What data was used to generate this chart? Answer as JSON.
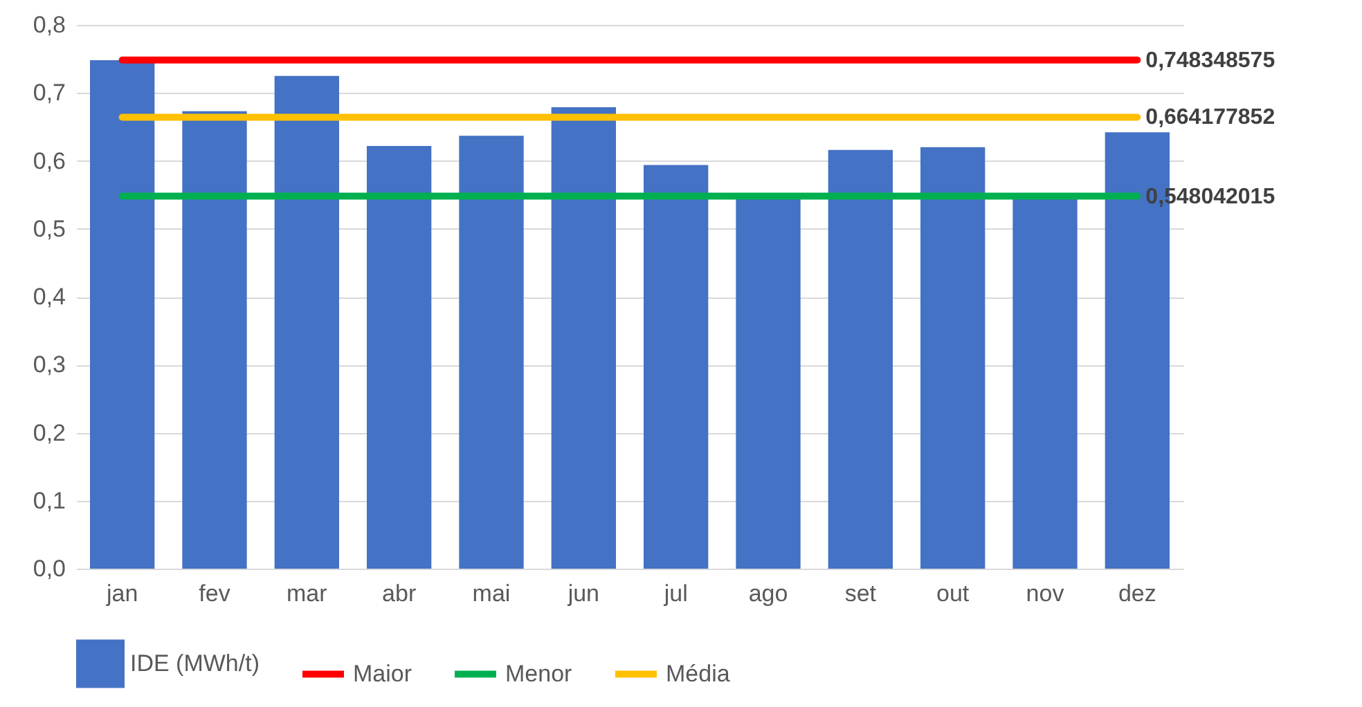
{
  "chart_data": {
    "type": "bar",
    "categories": [
      "jan",
      "fev",
      "mar",
      "abr",
      "mai",
      "jun",
      "jul",
      "ago",
      "set",
      "out",
      "nov",
      "dez"
    ],
    "series": [
      {
        "name": "IDE (MWh/t)",
        "color": "#4472c4",
        "values": [
          0.748,
          0.673,
          0.725,
          0.622,
          0.637,
          0.679,
          0.594,
          0.548,
          0.616,
          0.62,
          0.55,
          0.642
        ]
      },
      {
        "name": "Maior",
        "type": "line",
        "color": "#ff0000",
        "values": [
          0.748348575,
          0.748348575,
          0.748348575,
          0.748348575,
          0.748348575,
          0.748348575,
          0.748348575,
          0.748348575,
          0.748348575,
          0.748348575,
          0.748348575,
          0.748348575
        ],
        "value_labels": [
          null,
          null,
          null,
          null,
          null,
          null,
          null,
          null,
          null,
          null,
          null,
          "0,748348575"
        ]
      },
      {
        "name": "Menor",
        "type": "line",
        "color": "#00b050",
        "values": [
          0.548042015,
          0.548042015,
          0.548042015,
          0.548042015,
          0.548042015,
          0.548042015,
          0.548042015,
          0.548042015,
          0.548042015,
          0.548042015,
          0.548042015,
          0.548042015
        ],
        "value_labels": [
          null,
          null,
          null,
          null,
          null,
          null,
          null,
          null,
          null,
          null,
          null,
          "0,548042015"
        ]
      },
      {
        "name": "Média",
        "type": "line",
        "color": "#ffc000",
        "values": [
          0.664177852,
          0.664177852,
          0.664177852,
          0.664177852,
          0.664177852,
          0.664177852,
          0.664177852,
          0.664177852,
          0.664177852,
          0.664177852,
          0.664177852,
          0.664177852
        ],
        "value_labels": [
          null,
          null,
          null,
          null,
          null,
          null,
          null,
          null,
          null,
          null,
          null,
          "0,664177852"
        ]
      }
    ],
    "ylim": [
      0,
      0.8
    ],
    "yticks": [
      {
        "value": 0,
        "label": "0,0"
      },
      {
        "value": 0.1,
        "label": "0,1"
      },
      {
        "value": 0.2,
        "label": "0,2"
      },
      {
        "value": 0.3,
        "label": "0,3"
      },
      {
        "value": 0.4,
        "label": "0,4"
      },
      {
        "value": 0.5,
        "label": "0,5"
      },
      {
        "value": 0.6,
        "label": "0,6"
      },
      {
        "value": 0.7,
        "label": "0,7"
      },
      {
        "value": 0.8,
        "label": "0,8"
      }
    ],
    "grid": "y",
    "legend": "bottom",
    "marker": "none"
  }
}
